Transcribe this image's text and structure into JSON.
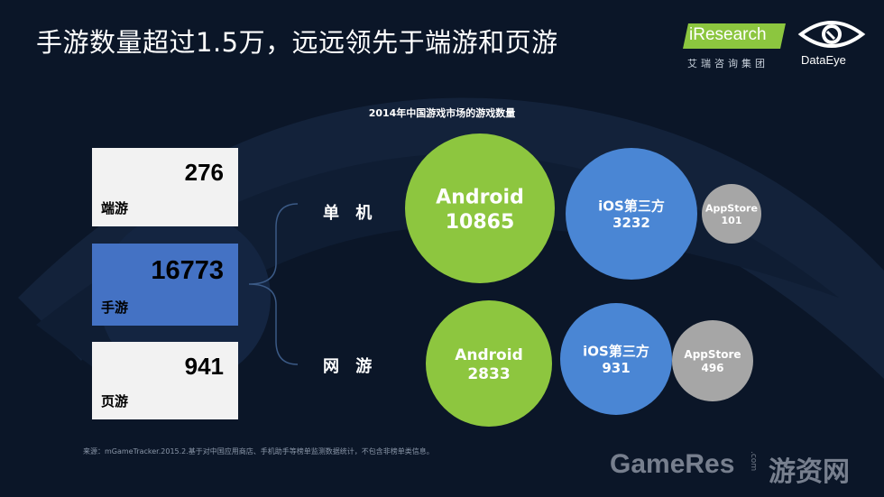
{
  "header": {
    "title": "手游数量超过1.5万，远远领先于端游和页游",
    "logo_iresearch": "iResearch",
    "logo_iresearch_sub": "艾瑞咨询集团",
    "logo_dataeye": "DataEye"
  },
  "chart_data": {
    "type": "bubble",
    "title": "2014年中国游戏市场的游戏数量",
    "categories": [
      {
        "name": "端游",
        "value": 276,
        "highlight": false
      },
      {
        "name": "手游",
        "value": 16773,
        "highlight": true
      },
      {
        "name": "页游",
        "value": 941,
        "highlight": false
      }
    ],
    "groups": [
      {
        "name": "单 机",
        "bubbles": [
          {
            "label": "Android",
            "value": 10865,
            "color": "#8dc63f"
          },
          {
            "label": "iOS第三方",
            "value": 3232,
            "color": "#4a86d4"
          },
          {
            "label": "AppStore",
            "value": 101,
            "color": "#a6a6a6"
          }
        ]
      },
      {
        "name": "网 游",
        "bubbles": [
          {
            "label": "Android",
            "value": 2833,
            "color": "#8dc63f"
          },
          {
            "label": "iOS第三方",
            "value": 931,
            "color": "#4a86d4"
          },
          {
            "label": "AppStore",
            "value": 496,
            "color": "#a6a6a6"
          }
        ]
      }
    ]
  },
  "footer": {
    "source": "来源：mGameTracker.2015.2.基于对中国应用商店、手机助手等榜单监测数据统计，不包含非榜单类信息。",
    "watermark": "GameRes",
    "watermark_com": ".com",
    "watermark_cn": "游资网"
  },
  "colors": {
    "background": "#0b1628",
    "highlight": "#4472c4",
    "card": "#f2f2f2"
  }
}
